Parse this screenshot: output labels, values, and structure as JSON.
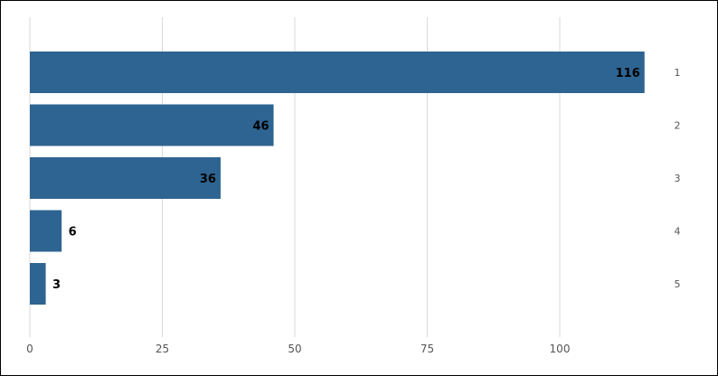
{
  "chart_data": {
    "type": "bar",
    "orientation": "horizontal",
    "categories": [
      "1",
      "2",
      "3",
      "4",
      "5"
    ],
    "values": [
      116,
      46,
      36,
      6,
      3
    ],
    "data_labels": [
      "116",
      "46",
      "36",
      "6",
      "3"
    ],
    "title": "",
    "xlabel": "",
    "ylabel": "",
    "xlim": [
      0,
      125
    ],
    "x_ticks": [
      "0",
      "25",
      "50",
      "75",
      "100"
    ],
    "grid": true,
    "legend": "none",
    "category_axis_position": "right",
    "bar_color": "#2e6491"
  }
}
